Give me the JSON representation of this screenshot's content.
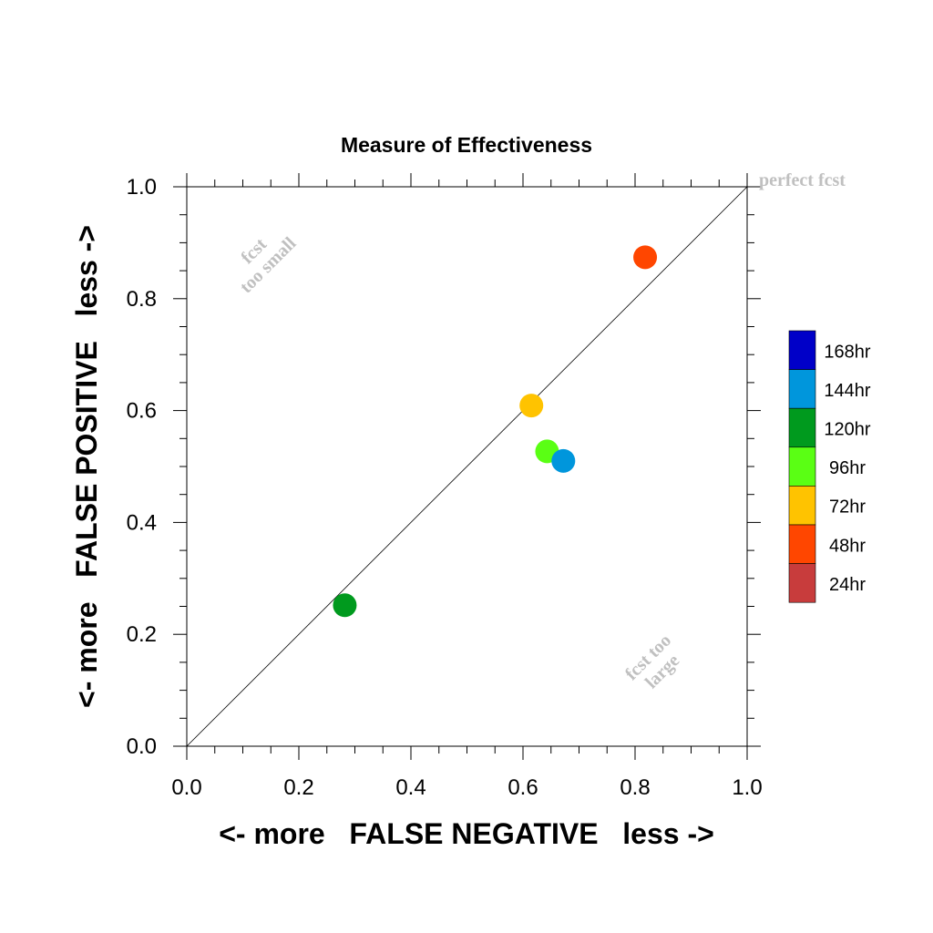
{
  "chart_data": {
    "type": "scatter",
    "title": "Measure of Effectiveness",
    "xlabel": "<- more   FALSE NEGATIVE   less ->",
    "ylabel": "<- more   FALSE POSITIVE   less ->",
    "xlim": [
      0.0,
      1.0
    ],
    "ylim": [
      0.0,
      1.0
    ],
    "xticks": [
      "0.0",
      "0.2",
      "0.4",
      "0.6",
      "0.8",
      "1.0"
    ],
    "yticks": [
      "0.0",
      "0.2",
      "0.4",
      "0.6",
      "0.8",
      "1.0"
    ],
    "grid": false,
    "reference_line": "diagonal",
    "annotations": {
      "perfect": "perfect fcst",
      "too_small_1": "fcst",
      "too_small_2": "too small",
      "too_large_1": "fcst too",
      "too_large_2": "large"
    },
    "legend": {
      "placement": "right",
      "entries": [
        {
          "label": "168hr",
          "color": "#0000c8"
        },
        {
          "label": "144hr",
          "color": "#0096dc"
        },
        {
          "label": "120hr",
          "color": "#009a1e"
        },
        {
          "label": "96hr",
          "color": "#5aff14"
        },
        {
          "label": "72hr",
          "color": "#ffc300"
        },
        {
          "label": "48hr",
          "color": "#ff4600"
        },
        {
          "label": "24hr",
          "color": "#c83c3c"
        }
      ]
    },
    "points": [
      {
        "series": "48hr",
        "x": 0.818,
        "y": 0.874,
        "color": "#ff4600"
      },
      {
        "series": "72hr",
        "x": 0.615,
        "y": 0.609,
        "color": "#ffc300"
      },
      {
        "series": "96hr",
        "x": 0.643,
        "y": 0.527,
        "color": "#5aff14"
      },
      {
        "series": "144hr",
        "x": 0.672,
        "y": 0.51,
        "color": "#0096dc"
      },
      {
        "series": "120hr",
        "x": 0.282,
        "y": 0.252,
        "color": "#009a1e"
      }
    ]
  }
}
